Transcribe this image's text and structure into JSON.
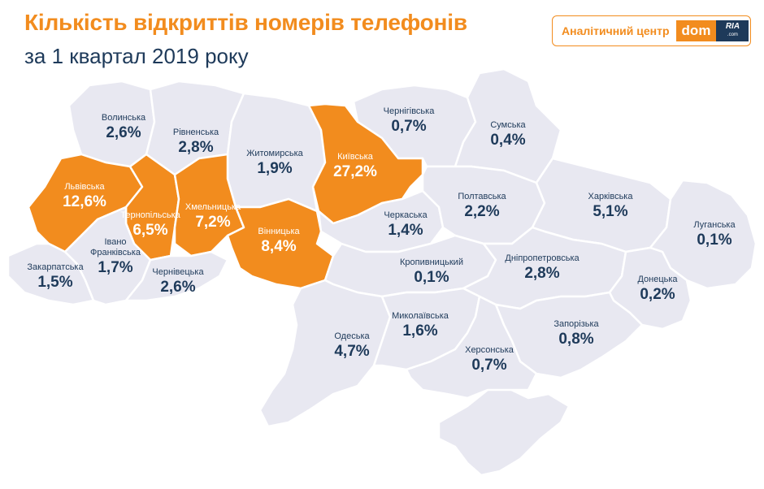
{
  "header": {
    "title": "Кількість відкриттів номерів телефонів",
    "subtitle": "за 1 квартал 2019 року"
  },
  "badge": {
    "label": "Аналітичний центр",
    "logo_dom": "dom",
    "logo_ria": "RIA",
    "logo_suffix": ".com"
  },
  "colors": {
    "highlight": "#f28c1e",
    "region": "#e8e8f1",
    "text": "#1e3a5a"
  },
  "regions": [
    {
      "id": "volynska",
      "name": "Волинська",
      "value": "2,6%",
      "highlight": false
    },
    {
      "id": "rivnenska",
      "name": "Рівненська",
      "value": "2,8%",
      "highlight": false
    },
    {
      "id": "zhytomyrska",
      "name": "Житомирська",
      "value": "1,9%",
      "highlight": false
    },
    {
      "id": "kyivska",
      "name": "Київська",
      "value": "27,2%",
      "highlight": true
    },
    {
      "id": "chernihivska",
      "name": "Чернігівська",
      "value": "0,7%",
      "highlight": false
    },
    {
      "id": "sumska",
      "name": "Сумська",
      "value": "0,4%",
      "highlight": false
    },
    {
      "id": "lvivska",
      "name": "Львівська",
      "value": "12,6%",
      "highlight": true
    },
    {
      "id": "ternopilska",
      "name": "Тернопільська",
      "value": "6,5%",
      "highlight": true
    },
    {
      "id": "khmelnytska",
      "name": "Хмельницька",
      "value": "7,2%",
      "highlight": true
    },
    {
      "id": "vinnytska",
      "name": "Вінницька",
      "value": "8,4%",
      "highlight": true
    },
    {
      "id": "cherkaska",
      "name": "Черкаська",
      "value": "1,4%",
      "highlight": false
    },
    {
      "id": "poltavska",
      "name": "Полтавська",
      "value": "2,2%",
      "highlight": false
    },
    {
      "id": "kharkivska",
      "name": "Харківська",
      "value": "5,1%",
      "highlight": false
    },
    {
      "id": "luhanska",
      "name": "Луганська",
      "value": "0,1%",
      "highlight": false
    },
    {
      "id": "zakarpatska",
      "name": "Закарпатська",
      "value": "1,5%",
      "highlight": false
    },
    {
      "id": "ivano_frankivska",
      "name": "Івано Франківська",
      "value": "1,7%",
      "highlight": false
    },
    {
      "id": "chernivetska",
      "name": "Чернівецька",
      "value": "2,6%",
      "highlight": false
    },
    {
      "id": "kropyvnytskyi",
      "name": "Кропивницький",
      "value": "0,1%",
      "highlight": false
    },
    {
      "id": "dnipropetrovska",
      "name": "Дніпропетровська",
      "value": "2,8%",
      "highlight": false
    },
    {
      "id": "donetska",
      "name": "Донецька",
      "value": "0,2%",
      "highlight": false
    },
    {
      "id": "odeska",
      "name": "Одеська",
      "value": "4,7%",
      "highlight": false
    },
    {
      "id": "mykolaivska",
      "name": "Миколаївська",
      "value": "1,6%",
      "highlight": false
    },
    {
      "id": "zaporizka",
      "name": "Запорізька",
      "value": "0,8%",
      "highlight": false
    },
    {
      "id": "khersonska",
      "name": "Херсонська",
      "value": "0,7%",
      "highlight": false
    }
  ]
}
